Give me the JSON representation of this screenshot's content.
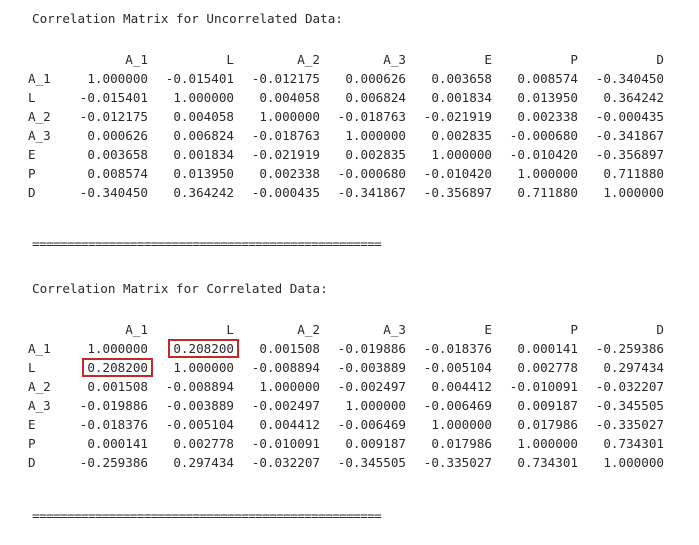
{
  "uncorrelated": {
    "title": "Correlation Matrix for Uncorrelated Data:",
    "columns": [
      "A_1",
      "L",
      "A_2",
      "A_3",
      "E",
      "P",
      "D"
    ],
    "rows": [
      {
        "label": "A_1",
        "values": [
          "1.000000",
          "-0.015401",
          "-0.012175",
          "0.000626",
          "0.003658",
          "0.008574",
          "-0.340450"
        ]
      },
      {
        "label": "L",
        "values": [
          "-0.015401",
          "1.000000",
          "0.004058",
          "0.006824",
          "0.001834",
          "0.013950",
          "0.364242"
        ]
      },
      {
        "label": "A_2",
        "values": [
          "-0.012175",
          "0.004058",
          "1.000000",
          "-0.018763",
          "-0.021919",
          "0.002338",
          "-0.000435"
        ]
      },
      {
        "label": "A_3",
        "values": [
          "0.000626",
          "0.006824",
          "-0.018763",
          "1.000000",
          "0.002835",
          "-0.000680",
          "-0.341867"
        ]
      },
      {
        "label": "E",
        "values": [
          "0.003658",
          "0.001834",
          "-0.021919",
          "0.002835",
          "1.000000",
          "-0.010420",
          "-0.356897"
        ]
      },
      {
        "label": "P",
        "values": [
          "0.008574",
          "0.013950",
          "0.002338",
          "-0.000680",
          "-0.010420",
          "1.000000",
          "0.711880"
        ]
      },
      {
        "label": "D",
        "values": [
          "-0.340450",
          "0.364242",
          "-0.000435",
          "-0.341867",
          "-0.356897",
          "0.711880",
          "1.000000"
        ]
      }
    ]
  },
  "separator_1": "==================================================",
  "correlated": {
    "title": "Correlation Matrix for Correlated Data:",
    "columns": [
      "A_1",
      "L",
      "A_2",
      "A_3",
      "E",
      "P",
      "D"
    ],
    "rows": [
      {
        "label": "A_1",
        "values": [
          "1.000000",
          "0.208200",
          "0.001508",
          "-0.019886",
          "-0.018376",
          "0.000141",
          "-0.259386"
        ]
      },
      {
        "label": "L",
        "values": [
          "0.208200",
          "1.000000",
          "-0.008894",
          "-0.003889",
          "-0.005104",
          "0.002778",
          "0.297434"
        ]
      },
      {
        "label": "A_2",
        "values": [
          "0.001508",
          "-0.008894",
          "1.000000",
          "-0.002497",
          "0.004412",
          "-0.010091",
          "-0.032207"
        ]
      },
      {
        "label": "A_3",
        "values": [
          "-0.019886",
          "-0.003889",
          "-0.002497",
          "1.000000",
          "-0.006469",
          "0.009187",
          "-0.345505"
        ]
      },
      {
        "label": "E",
        "values": [
          "-0.018376",
          "-0.005104",
          "0.004412",
          "-0.006469",
          "1.000000",
          "0.017986",
          "-0.335027"
        ]
      },
      {
        "label": "P",
        "values": [
          "0.000141",
          "0.002778",
          "-0.010091",
          "0.009187",
          "0.017986",
          "1.000000",
          "0.734301"
        ]
      },
      {
        "label": "D",
        "values": [
          "-0.259386",
          "0.297434",
          "-0.032207",
          "-0.345505",
          "-0.335027",
          "0.734301",
          "1.000000"
        ]
      }
    ],
    "highlighted_cells": [
      {
        "row": 0,
        "col": 1
      },
      {
        "row": 1,
        "col": 0
      }
    ],
    "highlight_color": "#c62828"
  },
  "separator_2": "=================================================="
}
